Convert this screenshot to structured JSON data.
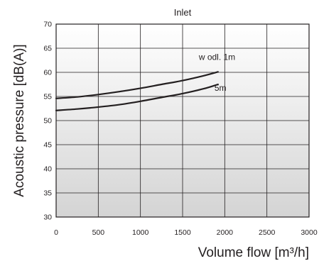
{
  "chart_data": {
    "type": "line",
    "title": "Inlet",
    "xlabel": "Volume flow [m³/h]",
    "ylabel": "Acoustic pressure  [dB(A)]",
    "xlim": [
      0,
      3000
    ],
    "ylim": [
      30,
      70
    ],
    "xticks": [
      "0",
      "500",
      "1000",
      "1500",
      "2000",
      "2500",
      "3000"
    ],
    "yticks": [
      "30",
      "35",
      "40",
      "45",
      "50",
      "55",
      "60",
      "65",
      "70"
    ],
    "grid": true,
    "series": [
      {
        "name": "w odl. 1m",
        "x": [
          0,
          250,
          500,
          750,
          1000,
          1250,
          1500,
          1750,
          1920
        ],
        "y": [
          54.6,
          54.9,
          55.4,
          56.0,
          56.7,
          57.5,
          58.3,
          59.3,
          60.1
        ]
      },
      {
        "name": "5m",
        "x": [
          0,
          250,
          500,
          750,
          1000,
          1250,
          1500,
          1750,
          1920
        ],
        "y": [
          52.1,
          52.4,
          52.8,
          53.3,
          54.0,
          54.8,
          55.6,
          56.6,
          57.5
        ]
      }
    ],
    "colors": {
      "line": "#231f20",
      "grid": "#231f20",
      "plot_top": "#ffffff",
      "plot_bottom": "#d4d4d4"
    }
  }
}
